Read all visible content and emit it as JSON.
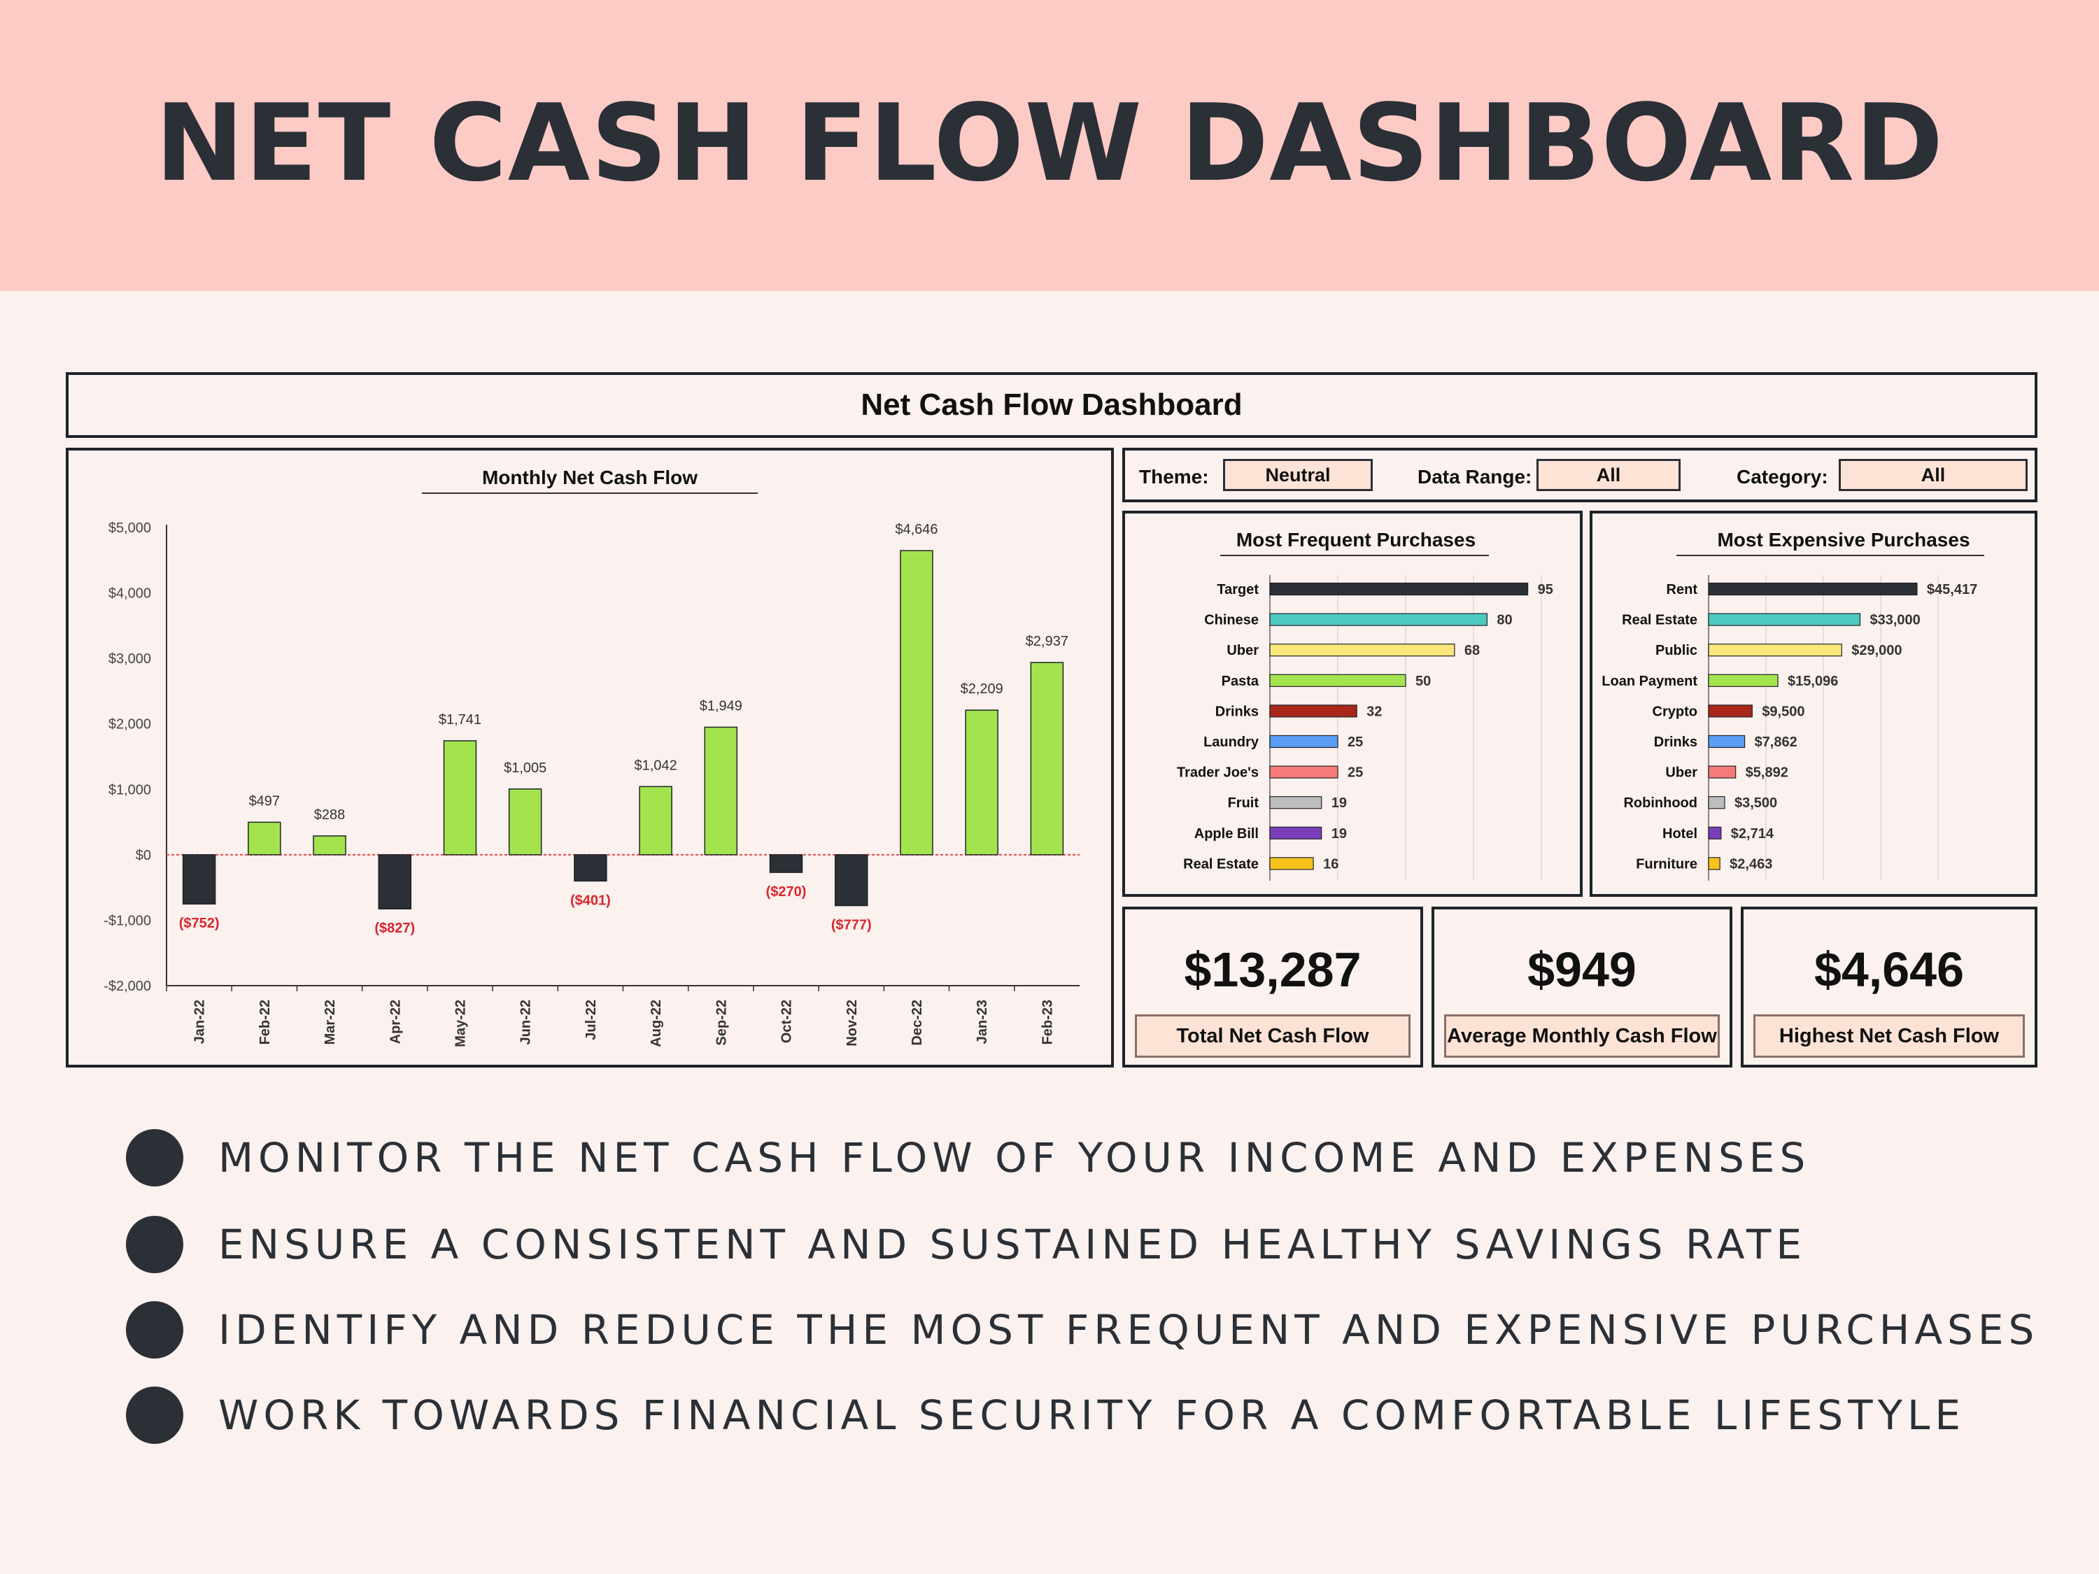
{
  "banner": {
    "title": "NET CASH FLOW DASHBOARD"
  },
  "dashboard": {
    "title": "Net Cash Flow Dashboard"
  },
  "filters": {
    "theme_label": "Theme:",
    "theme_value": "Neutral",
    "range_label": "Data Range:",
    "range_value": "All",
    "category_label": "Category:",
    "category_value": "All"
  },
  "kpis": [
    {
      "value": "$13,287",
      "label": "Total Net Cash Flow"
    },
    {
      "value": "$949",
      "label": "Average Monthly Cash Flow"
    },
    {
      "value": "$4,646",
      "label": "Highest Net Cash Flow"
    }
  ],
  "bullets": [
    "MONITOR THE NET CASH FLOW OF YOUR INCOME AND EXPENSES",
    "ENSURE A CONSISTENT AND SUSTAINED HEALTHY SAVINGS RATE",
    "IDENTIFY AND REDUCE THE MOST FREQUENT AND EXPENSIVE PURCHASES",
    "WORK TOWARDS FINANCIAL SECURITY FOR A COMFORTABLE LIFESTYLE"
  ],
  "colors": {
    "positive": "#a3e44e",
    "negative": "#2b2f36",
    "negative_label": "#d9262f",
    "zero_line": "#e04848"
  },
  "chart_data": [
    {
      "type": "bar",
      "title": "Monthly Net Cash Flow",
      "categories": [
        "Jan-22",
        "Feb-22",
        "Mar-22",
        "Apr-22",
        "May-22",
        "Jun-22",
        "Jul-22",
        "Aug-22",
        "Sep-22",
        "Oct-22",
        "Nov-22",
        "Dec-22",
        "Jan-23",
        "Feb-23"
      ],
      "values": [
        -752,
        497,
        288,
        -827,
        1741,
        1005,
        -401,
        1042,
        1949,
        -270,
        -777,
        4646,
        2209,
        2937
      ],
      "value_labels": [
        "($752)",
        "$497",
        "$288",
        "($827)",
        "$1,741",
        "$1,005",
        "($401)",
        "$1,042",
        "$1,949",
        "($270)",
        "($777)",
        "$4,646",
        "$2,209",
        "$2,937"
      ],
      "ylim": [
        -2000,
        5000
      ],
      "yticks": [
        -2000,
        -1000,
        0,
        1000,
        2000,
        3000,
        4000,
        5000
      ],
      "ytick_labels": [
        "-$2,000",
        "-$1,000",
        "$0",
        "$1,000",
        "$2,000",
        "$3,000",
        "$4,000",
        "$5,000"
      ],
      "xlabel": "",
      "ylabel": "",
      "grid": false
    },
    {
      "type": "bar",
      "orientation": "horizontal",
      "title": "Most Frequent Purchases",
      "categories": [
        "Target",
        "Chinese",
        "Uber",
        "Pasta",
        "Drinks",
        "Laundry",
        "Trader Joe's",
        "Fruit",
        "Apple Bill",
        "Real Estate"
      ],
      "values": [
        95,
        80,
        68,
        50,
        32,
        25,
        25,
        19,
        19,
        16
      ],
      "value_labels": [
        "95",
        "80",
        "68",
        "50",
        "32",
        "25",
        "25",
        "19",
        "19",
        "16"
      ],
      "colors": [
        "#2b2f36",
        "#4ec9c0",
        "#fbe77a",
        "#a3e44e",
        "#a8261a",
        "#5b9cf5",
        "#f77a7a",
        "#bdbdbd",
        "#7a3fb8",
        "#f7c21a"
      ],
      "xlim": [
        0,
        100
      ],
      "grid": true
    },
    {
      "type": "bar",
      "orientation": "horizontal",
      "title": "Most Expensive Purchases",
      "categories": [
        "Rent",
        "Real Estate",
        "Public",
        "Loan Payment",
        "Crypto",
        "Drinks",
        "Uber",
        "Robinhood",
        "Hotel",
        "Furniture"
      ],
      "values": [
        45417,
        33000,
        29000,
        15096,
        9500,
        7862,
        5892,
        3500,
        2714,
        2463
      ],
      "value_labels": [
        "$45,417",
        "$33,000",
        "$29,000",
        "$15,096",
        "$9,500",
        "$7,862",
        "$5,892",
        "$3,500",
        "$2,714",
        "$2,463"
      ],
      "colors": [
        "#2b2f36",
        "#4ec9c0",
        "#fbe77a",
        "#a3e44e",
        "#a8261a",
        "#5b9cf5",
        "#f77a7a",
        "#bdbdbd",
        "#7a3fb8",
        "#f7c21a"
      ],
      "xlim": [
        0,
        50000
      ],
      "grid": true
    }
  ]
}
